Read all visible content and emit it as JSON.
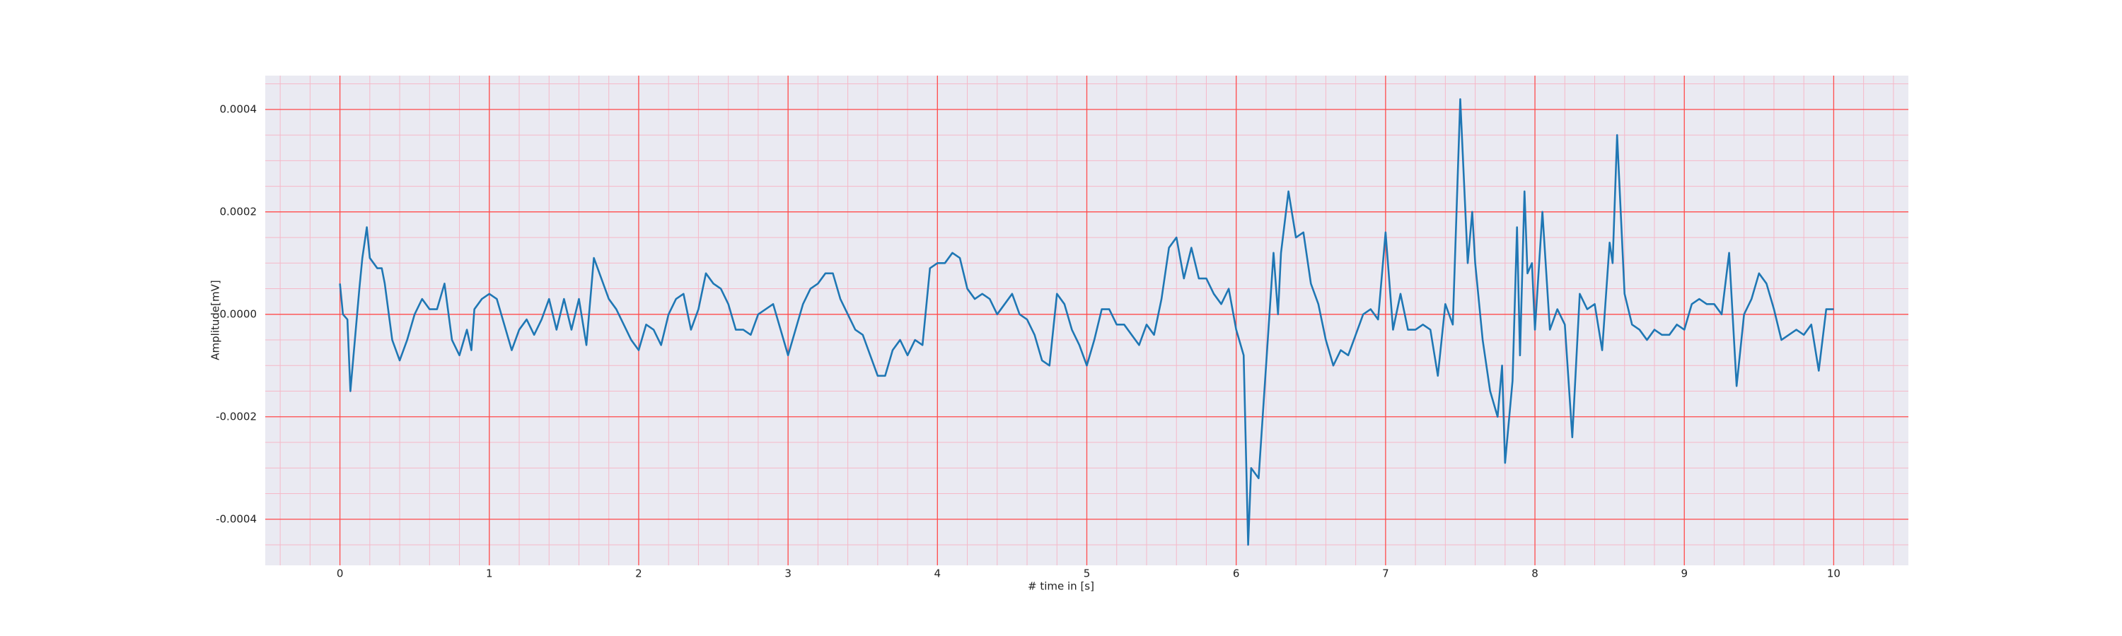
{
  "chart_data": {
    "type": "line",
    "xlabel": "# time in [s]",
    "ylabel": "Amplitude[mV]",
    "xlim": [
      -0.5,
      10.5
    ],
    "ylim": [
      -0.00049,
      0.000466
    ],
    "xticks": [
      0,
      1,
      2,
      3,
      4,
      5,
      6,
      7,
      8,
      9,
      10
    ],
    "yticks": [
      -0.0004,
      -0.0002,
      {
        "value": 0,
        "label": "0.0000"
      },
      0.0002,
      0.0004
    ],
    "grid": true,
    "grid_color": "#ff4d4d",
    "minor_grid": {
      "x_step": 0.2,
      "y_step": 5e-05,
      "color": "#f5b8c8"
    },
    "background": "#eaeaf2",
    "series": [
      {
        "color": "#1f77b4",
        "x": [
          0,
          0.02,
          0.05,
          0.07,
          0.1,
          0.13,
          0.15,
          0.18,
          0.2,
          0.25,
          0.28,
          0.3,
          0.35,
          0.4,
          0.45,
          0.5,
          0.55,
          0.6,
          0.65,
          0.7,
          0.75,
          0.8,
          0.85,
          0.88,
          0.9,
          0.95,
          1.0,
          1.05,
          1.1,
          1.15,
          1.2,
          1.25,
          1.3,
          1.35,
          1.4,
          1.45,
          1.5,
          1.55,
          1.6,
          1.65,
          1.7,
          1.75,
          1.8,
          1.85,
          1.9,
          1.95,
          2.0,
          2.05,
          2.1,
          2.15,
          2.2,
          2.25,
          2.3,
          2.35,
          2.4,
          2.45,
          2.5,
          2.55,
          2.6,
          2.65,
          2.7,
          2.75,
          2.8,
          2.85,
          2.9,
          2.95,
          3.0,
          3.05,
          3.1,
          3.15,
          3.2,
          3.25,
          3.3,
          3.35,
          3.4,
          3.45,
          3.5,
          3.55,
          3.6,
          3.65,
          3.7,
          3.75,
          3.8,
          3.85,
          3.9,
          3.95,
          4.0,
          4.05,
          4.1,
          4.15,
          4.2,
          4.25,
          4.3,
          4.35,
          4.4,
          4.45,
          4.5,
          4.55,
          4.6,
          4.65,
          4.7,
          4.75,
          4.8,
          4.85,
          4.9,
          4.95,
          5.0,
          5.05,
          5.1,
          5.15,
          5.2,
          5.25,
          5.3,
          5.35,
          5.4,
          5.45,
          5.5,
          5.55,
          5.6,
          5.65,
          5.7,
          5.75,
          5.8,
          5.85,
          5.9,
          5.95,
          6.0,
          6.05,
          6.08,
          6.1,
          6.15,
          6.2,
          6.25,
          6.28,
          6.3,
          6.35,
          6.4,
          6.45,
          6.5,
          6.55,
          6.6,
          6.65,
          6.7,
          6.75,
          6.8,
          6.85,
          6.9,
          6.95,
          7.0,
          7.05,
          7.1,
          7.15,
          7.2,
          7.25,
          7.3,
          7.35,
          7.4,
          7.45,
          7.5,
          7.55,
          7.58,
          7.6,
          7.65,
          7.7,
          7.75,
          7.78,
          7.8,
          7.85,
          7.88,
          7.9,
          7.93,
          7.95,
          7.98,
          8.0,
          8.05,
          8.1,
          8.15,
          8.2,
          8.25,
          8.3,
          8.35,
          8.4,
          8.45,
          8.5,
          8.52,
          8.55,
          8.6,
          8.65,
          8.7,
          8.75,
          8.8,
          8.85,
          8.9,
          8.95,
          9.0,
          9.05,
          9.1,
          9.15,
          9.2,
          9.25,
          9.3,
          9.35,
          9.4,
          9.45,
          9.5,
          9.55,
          9.6,
          9.65,
          9.7,
          9.75,
          9.8,
          9.85,
          9.9,
          9.95,
          10.0
        ],
        "values": [
          6e-05,
          0,
          -1e-05,
          -0.00015,
          -5e-05,
          5e-05,
          0.00011,
          0.00017,
          0.00011,
          9e-05,
          9e-05,
          6e-05,
          -5e-05,
          -9e-05,
          -5e-05,
          0,
          3e-05,
          1e-05,
          1e-05,
          6e-05,
          -5e-05,
          -8e-05,
          -3e-05,
          -7e-05,
          1e-05,
          3e-05,
          4e-05,
          3e-05,
          -2e-05,
          -7e-05,
          -3e-05,
          -1e-05,
          -4e-05,
          -1e-05,
          3e-05,
          -3e-05,
          3e-05,
          -3e-05,
          3e-05,
          -6e-05,
          0.00011,
          7e-05,
          3e-05,
          1e-05,
          -2e-05,
          -5e-05,
          -7e-05,
          -2e-05,
          -3e-05,
          -6e-05,
          0,
          3e-05,
          4e-05,
          -3e-05,
          1e-05,
          8e-05,
          6e-05,
          5e-05,
          2e-05,
          -3e-05,
          -3e-05,
          -4e-05,
          0,
          1e-05,
          2e-05,
          -3e-05,
          -8e-05,
          -3e-05,
          2e-05,
          5e-05,
          6e-05,
          8e-05,
          8e-05,
          3e-05,
          0,
          -3e-05,
          -4e-05,
          -8e-05,
          -0.00012,
          -0.00012,
          -7e-05,
          -5e-05,
          -8e-05,
          -5e-05,
          -6e-05,
          9e-05,
          0.0001,
          0.0001,
          0.00012,
          0.00011,
          5e-05,
          3e-05,
          4e-05,
          3e-05,
          0,
          2e-05,
          4e-05,
          0,
          -1e-05,
          -4e-05,
          -9e-05,
          -0.0001,
          4e-05,
          2e-05,
          -3e-05,
          -6e-05,
          -0.0001,
          -5e-05,
          1e-05,
          1e-05,
          -2e-05,
          -2e-05,
          -4e-05,
          -6e-05,
          -2e-05,
          -4e-05,
          3e-05,
          0.00013,
          0.00015,
          7e-05,
          0.00013,
          7e-05,
          7e-05,
          4e-05,
          2e-05,
          5e-05,
          -3e-05,
          -8e-05,
          -0.00045,
          -0.0003,
          -0.00032,
          -0.0001,
          0.00012,
          0,
          0.00012,
          0.00024,
          0.00015,
          0.00016,
          6e-05,
          2e-05,
          -5e-05,
          -0.0001,
          -7e-05,
          -8e-05,
          -4e-05,
          0,
          1e-05,
          -1e-05,
          0.00016,
          -3e-05,
          4e-05,
          -3e-05,
          -3e-05,
          -2e-05,
          -3e-05,
          -0.00012,
          2e-05,
          -2e-05,
          0.00042,
          0.0001,
          0.0002,
          0.0001,
          -5e-05,
          -0.00015,
          -0.0002,
          -0.0001,
          -0.00029,
          -0.00013,
          0.00017,
          -8e-05,
          0.00024,
          8e-05,
          0.0001,
          -3e-05,
          0.0002,
          -3e-05,
          1e-05,
          -2e-05,
          -0.00024,
          4e-05,
          1e-05,
          2e-05,
          -7e-05,
          0.00014,
          0.0001,
          0.00035,
          4e-05,
          -2e-05,
          -3e-05,
          -5e-05,
          -3e-05,
          -4e-05,
          -4e-05,
          -2e-05,
          -3e-05,
          2e-05,
          3e-05,
          2e-05,
          2e-05,
          0,
          0.00012,
          -0.00014,
          0,
          3e-05,
          8e-05,
          6e-05,
          1e-05,
          -5e-05,
          -4e-05,
          -3e-05,
          -4e-05,
          -2e-05,
          -0.00011,
          1e-05,
          1e-05
        ]
      }
    ]
  }
}
